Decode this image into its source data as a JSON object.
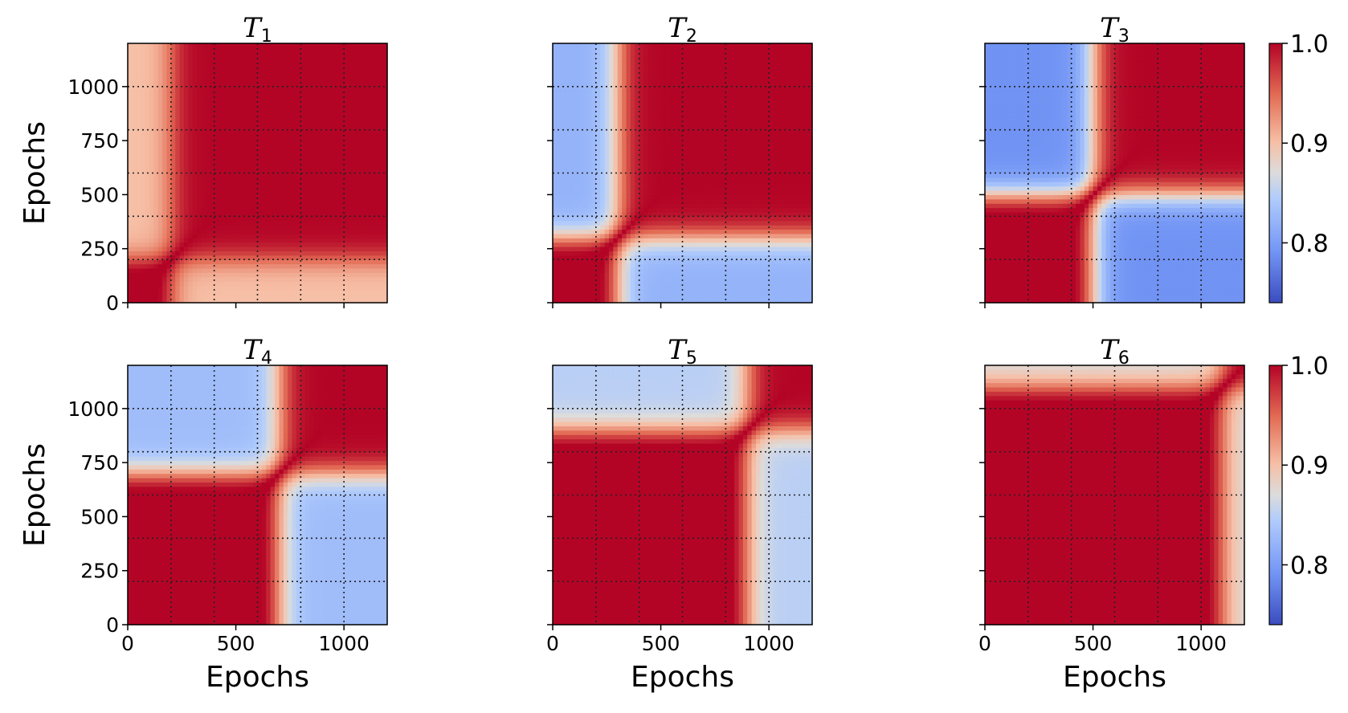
{
  "chart_data": {
    "type": "heatmap",
    "colormap": "coolwarm",
    "value_range": [
      0.74,
      1.0
    ],
    "axis_range": [
      0,
      1200
    ],
    "grid": "dotted",
    "x_ticks": [
      0,
      500,
      1000
    ],
    "y_ticks": [
      0,
      250,
      500,
      750,
      1000
    ],
    "xlabel": "Epochs",
    "ylabel": "Epochs",
    "colorbar_ticks": [
      "1.0",
      "0.9",
      "0.8"
    ],
    "colorbar_values": [
      1.0,
      0.9,
      0.8
    ],
    "panels": [
      {
        "title": "T",
        "subscript": "1",
        "boundary": 200,
        "low_value": 0.88
      },
      {
        "title": "T",
        "subscript": "2",
        "boundary": 300,
        "low_value": 0.8
      },
      {
        "title": "T",
        "subscript": "3",
        "boundary": 500,
        "low_value": 0.77
      },
      {
        "title": "T",
        "subscript": "4",
        "boundary": 700,
        "low_value": 0.81
      },
      {
        "title": "T",
        "subscript": "5",
        "boundary": 900,
        "low_value": 0.83
      },
      {
        "title": "T",
        "subscript": "6",
        "boundary": 1100,
        "low_value": 0.85
      }
    ]
  }
}
